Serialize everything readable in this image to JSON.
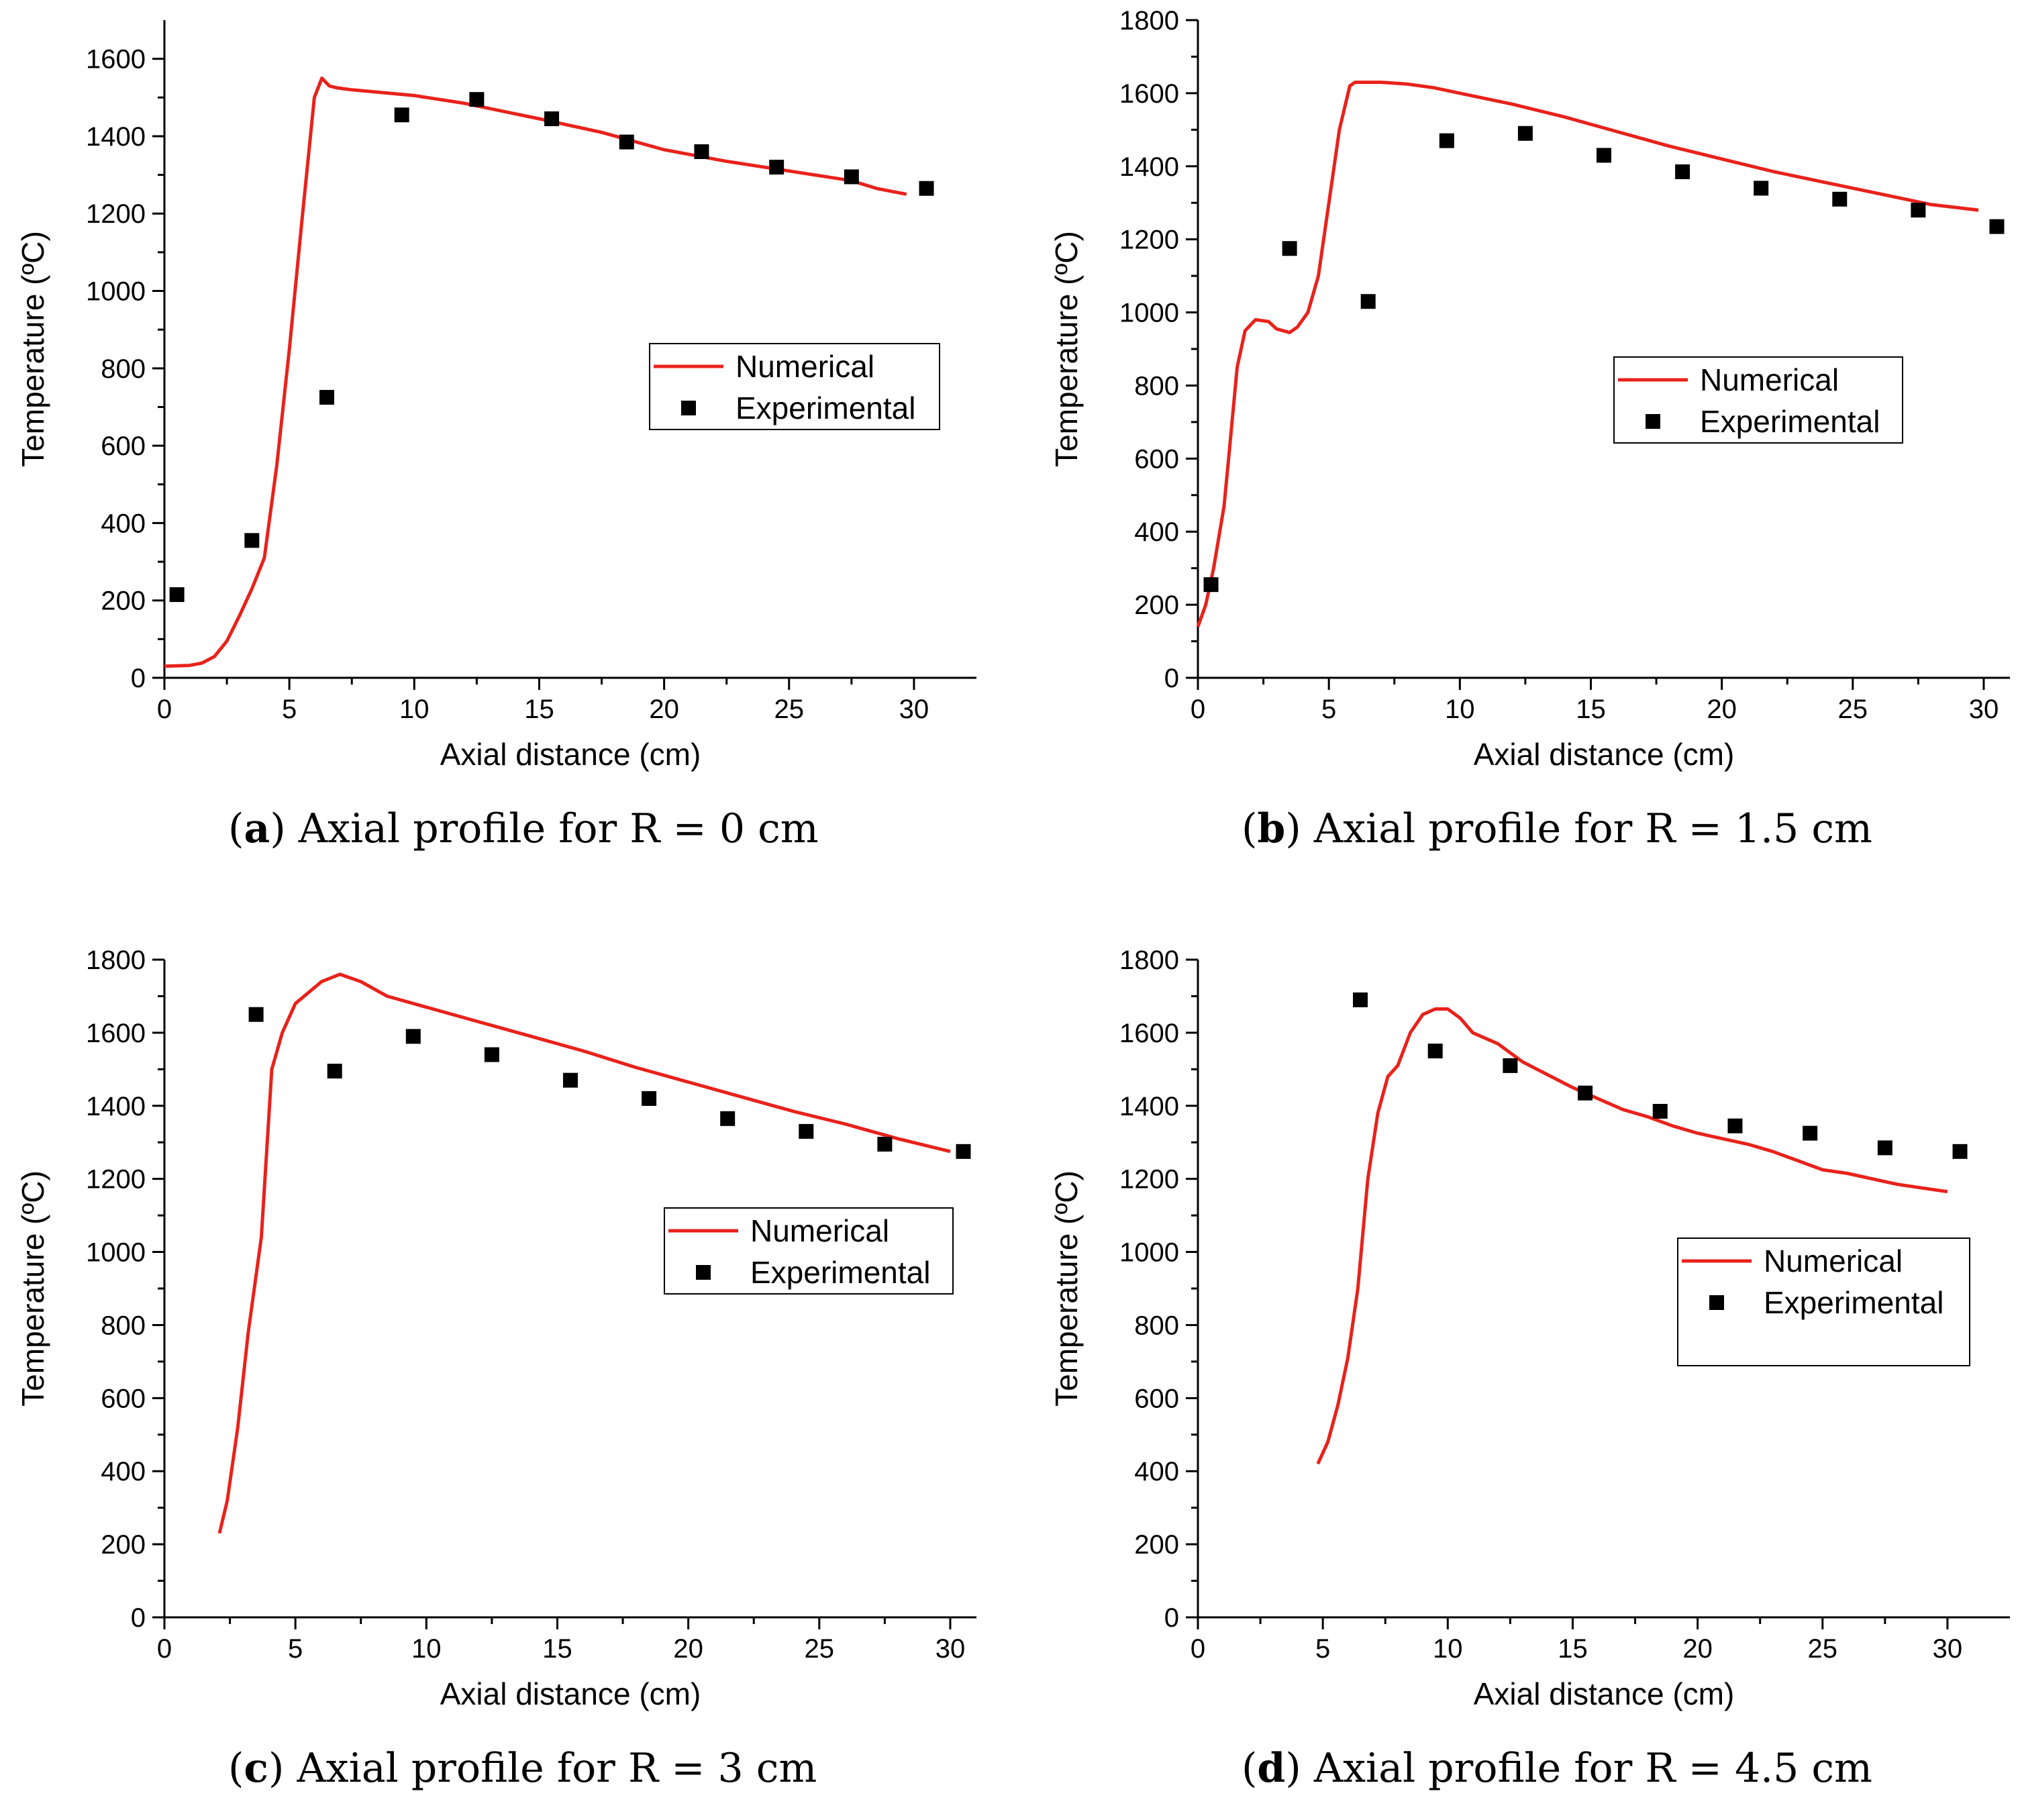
{
  "colors": {
    "numerical": "#e8221b",
    "experimental": "#000000",
    "axis": "#000000"
  },
  "chart_data": [
    {
      "type": "line",
      "caption_letter": "a",
      "caption_text": " Axial profile for R = 0 cm",
      "xlabel": "Axial distance (cm)",
      "ylabel": "Temperature (ºC)",
      "xlim": [
        0,
        32.5
      ],
      "ylim": [
        0,
        1700
      ],
      "xticks": [
        0,
        5,
        10,
        15,
        20,
        25,
        30
      ],
      "yticks": [
        0,
        200,
        400,
        600,
        800,
        1000,
        1200,
        1400,
        1600
      ],
      "legend_position": "right",
      "series": [
        {
          "name": "Numerical",
          "kind": "line",
          "x": [
            0,
            1,
            1.5,
            2,
            2.5,
            3,
            3.5,
            4,
            4.5,
            5,
            5.5,
            6,
            6.3,
            6.6,
            6.9,
            7.5,
            10,
            12,
            15,
            17.5,
            20,
            22.5,
            25,
            27.5,
            28.5,
            29.7
          ],
          "y": [
            30,
            32,
            38,
            55,
            95,
            160,
            230,
            310,
            550,
            850,
            1180,
            1500,
            1550,
            1530,
            1525,
            1520,
            1505,
            1485,
            1445,
            1410,
            1365,
            1335,
            1310,
            1285,
            1265,
            1250
          ]
        },
        {
          "name": "Experimental",
          "kind": "scatter",
          "x": [
            0.5,
            3.5,
            6.5,
            9.5,
            12.5,
            15.5,
            18.5,
            21.5,
            24.5,
            27.5,
            30.5
          ],
          "y": [
            215,
            355,
            725,
            1455,
            1495,
            1445,
            1385,
            1360,
            1320,
            1295,
            1265
          ]
        }
      ]
    },
    {
      "type": "line",
      "caption_letter": "b",
      "caption_text": " Axial profile for R = 1.5 cm",
      "xlabel": "Axial distance (cm)",
      "ylabel": "Temperature (ºC)",
      "xlim": [
        0,
        31
      ],
      "ylim": [
        0,
        1800
      ],
      "xticks": [
        0,
        5,
        10,
        15,
        20,
        25,
        30
      ],
      "yticks": [
        0,
        200,
        400,
        600,
        800,
        1000,
        1200,
        1400,
        1600,
        1800
      ],
      "legend_position": "right",
      "series": [
        {
          "name": "Numerical",
          "kind": "line",
          "x": [
            0,
            0.3,
            0.6,
            1,
            1.2,
            1.5,
            1.8,
            2.2,
            2.7,
            3,
            3.5,
            3.8,
            4.2,
            4.6,
            5,
            5.4,
            5.8,
            6,
            7,
            8,
            9,
            10,
            12,
            14,
            16,
            18,
            20,
            22,
            24,
            26,
            28,
            29.8
          ],
          "y": [
            140,
            200,
            300,
            470,
            620,
            850,
            950,
            980,
            975,
            955,
            945,
            960,
            1000,
            1100,
            1300,
            1500,
            1620,
            1630,
            1630,
            1625,
            1615,
            1600,
            1570,
            1535,
            1495,
            1455,
            1420,
            1385,
            1355,
            1325,
            1295,
            1280
          ]
        },
        {
          "name": "Experimental",
          "kind": "scatter",
          "x": [
            0.5,
            3.5,
            6.5,
            9.5,
            12.5,
            15.5,
            18.5,
            21.5,
            24.5,
            27.5,
            30.5
          ],
          "y": [
            255,
            1175,
            1030,
            1470,
            1490,
            1430,
            1385,
            1340,
            1310,
            1280,
            1235
          ]
        }
      ]
    },
    {
      "type": "line",
      "caption_letter": "c",
      "caption_text": " Axial profile for R = 3 cm",
      "xlabel": "Axial distance (cm)",
      "ylabel": "Temperature (ºC)",
      "xlim": [
        0,
        31
      ],
      "ylim": [
        0,
        1800
      ],
      "xticks": [
        0,
        5,
        10,
        15,
        20,
        25,
        30
      ],
      "yticks": [
        0,
        200,
        400,
        600,
        800,
        1000,
        1200,
        1400,
        1600,
        1800
      ],
      "legend_position": "right",
      "series": [
        {
          "name": "Numerical",
          "kind": "line",
          "x": [
            2.1,
            2.4,
            2.8,
            3.2,
            3.7,
            4.1,
            4.5,
            5,
            5.5,
            6,
            6.7,
            7.5,
            8.5,
            10,
            12,
            14,
            16,
            18,
            20,
            22,
            24,
            26,
            28,
            30
          ],
          "y": [
            230,
            320,
            520,
            780,
            1040,
            1500,
            1600,
            1680,
            1710,
            1740,
            1760,
            1740,
            1700,
            1670,
            1630,
            1590,
            1550,
            1505,
            1465,
            1425,
            1385,
            1350,
            1310,
            1275
          ]
        },
        {
          "name": "Experimental",
          "kind": "scatter",
          "x": [
            3.5,
            6.5,
            9.5,
            12.5,
            15.5,
            18.5,
            21.5,
            24.5,
            27.5,
            30.5
          ],
          "y": [
            1650,
            1495,
            1590,
            1540,
            1470,
            1420,
            1365,
            1330,
            1295,
            1275
          ]
        }
      ]
    },
    {
      "type": "line",
      "caption_letter": "d",
      "caption_text": " Axial profile for R = 4.5 cm",
      "xlabel": "Axial distance (cm)",
      "ylabel": "Temperature (ºC)",
      "xlim": [
        0,
        32.5
      ],
      "ylim": [
        0,
        1800
      ],
      "xticks": [
        0,
        5,
        10,
        15,
        20,
        25,
        30
      ],
      "yticks": [
        0,
        200,
        400,
        600,
        800,
        1000,
        1200,
        1400,
        1600,
        1800
      ],
      "legend_position": "right",
      "series": [
        {
          "name": "Numerical",
          "kind": "line",
          "x": [
            4.8,
            5.2,
            5.6,
            6,
            6.4,
            6.8,
            7.2,
            7.6,
            8,
            8.5,
            9,
            9.5,
            10,
            10.5,
            11,
            11.5,
            12,
            13,
            14,
            15,
            16,
            17,
            18,
            19,
            20,
            21,
            22,
            23,
            24,
            25,
            26,
            27,
            28,
            29,
            30
          ],
          "y": [
            420,
            480,
            580,
            710,
            900,
            1200,
            1380,
            1480,
            1510,
            1600,
            1650,
            1665,
            1665,
            1640,
            1600,
            1585,
            1570,
            1520,
            1485,
            1450,
            1420,
            1390,
            1370,
            1345,
            1325,
            1310,
            1295,
            1275,
            1250,
            1225,
            1215,
            1200,
            1185,
            1175,
            1165
          ]
        },
        {
          "name": "Experimental",
          "kind": "scatter",
          "x": [
            6.5,
            9.5,
            12.5,
            15.5,
            18.5,
            21.5,
            24.5,
            27.5,
            30.5
          ],
          "y": [
            1690,
            1550,
            1510,
            1435,
            1385,
            1345,
            1325,
            1285,
            1275
          ]
        }
      ]
    }
  ]
}
